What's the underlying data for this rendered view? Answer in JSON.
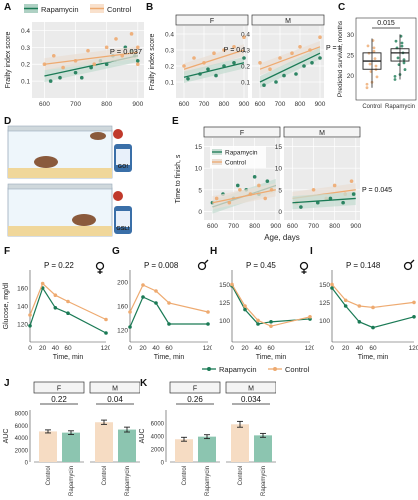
{
  "colors": {
    "rapa": "#1a7a55",
    "ctrl": "#eeaa70",
    "band_ctrl": "#eadfd6",
    "band_rapa": "#c6dcd2",
    "box_rapa": "#1a7a55",
    "box_ctrl": "#eeaa70"
  },
  "panel_letters": [
    "A",
    "B",
    "C",
    "D",
    "E",
    "F",
    "G",
    "H",
    "I",
    "J",
    "K"
  ],
  "legend_top": {
    "rapa": "Rapamycin",
    "ctrl": "Control"
  },
  "legend_glucose": {
    "rapa": "Rapamycin",
    "ctrl": "Control"
  },
  "diagram": {
    "screen1": "GO!",
    "screen2": "GSL!"
  },
  "chart_data": [
    {
      "id": "A",
      "type": "scatter",
      "ylabel": "Frailty index score",
      "xlabel": "",
      "xlim": [
        560,
        920
      ],
      "ylim": [
        0.0,
        0.45
      ],
      "xticks": [
        600,
        700,
        800,
        900
      ],
      "yticks": [
        0.1,
        0.2,
        0.3,
        0.4
      ],
      "annotation": "P = 0.037",
      "series": [
        {
          "name": "Rapamycin",
          "x": [
            620,
            650,
            700,
            720,
            750,
            780,
            800,
            820,
            860,
            880,
            890,
            900
          ],
          "y": [
            0.1,
            0.12,
            0.15,
            0.12,
            0.18,
            0.22,
            0.2,
            0.25,
            0.3,
            0.28,
            0.25,
            0.22
          ],
          "fit": [
            [
              600,
              0.13
            ],
            [
              900,
              0.25
            ]
          ]
        },
        {
          "name": "Control",
          "x": [
            600,
            630,
            660,
            700,
            740,
            760,
            800,
            830,
            850,
            880,
            900,
            900
          ],
          "y": [
            0.2,
            0.25,
            0.18,
            0.22,
            0.28,
            0.2,
            0.3,
            0.35,
            0.25,
            0.38,
            0.3,
            0.2
          ],
          "fit": [
            [
              600,
              0.2
            ],
            [
              900,
              0.27
            ]
          ]
        }
      ]
    },
    {
      "id": "B",
      "type": "scatter",
      "facets": [
        "F",
        "M"
      ],
      "ylabel": "Frailty index score",
      "xlabel": "",
      "xlim": [
        560,
        920
      ],
      "ylim": [
        0.0,
        0.45
      ],
      "xticks": [
        600,
        700,
        800,
        900
      ],
      "yticks": [
        0.1,
        0.2,
        0.3,
        0.4
      ],
      "annotations": [
        "",
        "P = 0.1",
        "P = 0.1"
      ],
      "series": [
        {
          "name": "Control F",
          "x": [
            600,
            650,
            700,
            750,
            800,
            850,
            900
          ],
          "y": [
            0.2,
            0.25,
            0.22,
            0.28,
            0.3,
            0.32,
            0.38
          ],
          "fit": [
            [
              600,
              0.18
            ],
            [
              900,
              0.3
            ]
          ]
        },
        {
          "name": "Rapamycin F",
          "x": [
            620,
            680,
            720,
            760,
            800,
            850,
            900
          ],
          "y": [
            0.12,
            0.15,
            0.18,
            0.14,
            0.2,
            0.22,
            0.25
          ],
          "fit": [
            [
              600,
              0.13
            ],
            [
              900,
              0.22
            ]
          ]
        },
        {
          "name": "Control M",
          "x": [
            600,
            650,
            700,
            760,
            800,
            850,
            900
          ],
          "y": [
            0.22,
            0.18,
            0.25,
            0.28,
            0.32,
            0.3,
            0.38
          ],
          "fit": [
            [
              600,
              0.18
            ],
            [
              900,
              0.32
            ]
          ]
        },
        {
          "name": "Rapamycin M",
          "x": [
            620,
            680,
            720,
            780,
            820,
            860,
            900
          ],
          "y": [
            0.08,
            0.1,
            0.14,
            0.15,
            0.2,
            0.22,
            0.25
          ],
          "fit": [
            [
              600,
              0.1
            ],
            [
              900,
              0.28
            ]
          ]
        }
      ]
    },
    {
      "id": "C",
      "type": "box",
      "ylabel": "Predicted survival, months",
      "categories": [
        "Control",
        "Rapamycin"
      ],
      "ylim": [
        14,
        34
      ],
      "yticks": [
        20,
        25,
        30
      ],
      "annotation": "0.015",
      "boxes": [
        {
          "q1": 21.5,
          "median": 23.5,
          "q3": 25.5,
          "lo": 17,
          "hi": 29
        },
        {
          "q1": 23.5,
          "median": 25.5,
          "q3": 26.5,
          "lo": 19,
          "hi": 30
        }
      ]
    },
    {
      "id": "E",
      "type": "scatter",
      "facets": [
        "F",
        "M"
      ],
      "ylabel": "Time to finish, s",
      "xlabel": "Age, days",
      "xlim": [
        560,
        920
      ],
      "ylim": [
        -2,
        17
      ],
      "xticks": [
        600,
        700,
        800,
        900
      ],
      "yticks": [
        0,
        5,
        10,
        15
      ],
      "annotation": "P = 0.045",
      "legend": [
        "Rapamycin",
        "Control"
      ],
      "series": [
        {
          "name": "Rapamycin F",
          "x": [
            600,
            650,
            700,
            720,
            760,
            800,
            820,
            860
          ],
          "y": [
            2,
            4,
            3,
            6,
            5,
            8,
            4,
            7
          ],
          "fit": [
            [
              600,
              1
            ],
            [
              900,
              6
            ]
          ]
        },
        {
          "name": "Control F",
          "x": [
            620,
            680,
            730,
            780,
            820,
            850,
            880
          ],
          "y": [
            3,
            2,
            5,
            4,
            6,
            3,
            5
          ],
          "fit": [
            [
              600,
              2
            ],
            [
              900,
              5
            ]
          ]
        },
        {
          "name": "Control M",
          "x": [
            620,
            700,
            760,
            800,
            850,
            880
          ],
          "y": [
            2,
            5,
            3,
            6,
            4,
            7
          ],
          "fit": [
            [
              600,
              3
            ],
            [
              900,
              5
            ]
          ]
        },
        {
          "name": "Rapamycin M",
          "x": [
            640,
            720,
            780,
            840,
            890
          ],
          "y": [
            1,
            2,
            3,
            2,
            4
          ],
          "fit": [
            [
              600,
              2
            ],
            [
              900,
              3
            ]
          ]
        }
      ]
    },
    {
      "id": "F",
      "type": "line",
      "sex": "F",
      "ylabel": "Glucose, mg/dl",
      "xlabel": "Time, min",
      "x": [
        0,
        20,
        40,
        60,
        120
      ],
      "xticks": [
        0,
        20,
        40,
        60,
        120
      ],
      "ylim": [
        100,
        180
      ],
      "yticks": [
        120,
        140,
        160
      ],
      "annotation": "P = 0.22",
      "series": [
        {
          "name": "Rapamycin",
          "values": [
            118,
            160,
            138,
            132,
            110
          ]
        },
        {
          "name": "Control",
          "values": [
            130,
            165,
            152,
            145,
            125
          ]
        }
      ]
    },
    {
      "id": "G",
      "type": "line",
      "sex": "M",
      "ylabel": "",
      "xlabel": "Time, min",
      "x": [
        0,
        20,
        40,
        60,
        120
      ],
      "xticks": [
        0,
        20,
        40,
        60,
        120
      ],
      "ylim": [
        100,
        220
      ],
      "yticks": [
        120,
        160,
        200
      ],
      "annotation": "P = 0.008",
      "series": [
        {
          "name": "Rapamycin",
          "values": [
            125,
            175,
            165,
            130,
            130
          ]
        },
        {
          "name": "Control",
          "values": [
            150,
            195,
            185,
            165,
            150
          ]
        }
      ]
    },
    {
      "id": "H",
      "type": "line",
      "sex": "F",
      "ylabel": "",
      "xlabel": "Time, min",
      "x": [
        0,
        20,
        40,
        60,
        120
      ],
      "xticks": [
        0,
        20,
        40,
        60,
        120
      ],
      "ylim": [
        70,
        170
      ],
      "yticks": [
        100,
        125,
        150
      ],
      "annotation": "P = 0.45",
      "series": [
        {
          "name": "Rapamycin",
          "values": [
            148,
            115,
            95,
            98,
            102
          ]
        },
        {
          "name": "Control",
          "values": [
            150,
            120,
            100,
            92,
            105
          ]
        }
      ]
    },
    {
      "id": "I",
      "type": "line",
      "sex": "M",
      "ylabel": "",
      "xlabel": "Time, min",
      "x": [
        0,
        20,
        40,
        60,
        120
      ],
      "xticks": [
        0,
        20,
        40,
        60,
        120
      ],
      "ylim": [
        70,
        170
      ],
      "yticks": [
        100,
        125,
        150
      ],
      "annotation": "P = 0.148",
      "series": [
        {
          "name": "Rapamycin",
          "values": [
            145,
            120,
            98,
            90,
            105
          ]
        },
        {
          "name": "Control",
          "values": [
            150,
            128,
            120,
            118,
            125
          ]
        }
      ]
    },
    {
      "id": "J",
      "type": "bar",
      "facets": [
        "F",
        "M"
      ],
      "ylabel": "AUC",
      "categories": [
        "Control",
        "Rapamycin"
      ],
      "ylim": [
        0,
        8500
      ],
      "yticks": [
        0,
        2000,
        4000,
        6000,
        8000
      ],
      "facet_values": [
        [
          5000,
          4800
        ],
        [
          6500,
          5300
        ]
      ],
      "facet_errors": [
        [
          250,
          300
        ],
        [
          350,
          400
        ]
      ],
      "pvalues": [
        "0.22",
        "0.04"
      ]
    },
    {
      "id": "K",
      "type": "bar",
      "facets": [
        "F",
        "M"
      ],
      "ylabel": "AUC",
      "categories": [
        "Control",
        "Rapamycin"
      ],
      "ylim": [
        0,
        8000
      ],
      "yticks": [
        0,
        2000,
        4000,
        6000
      ],
      "facet_values": [
        [
          3500,
          3900
        ],
        [
          5800,
          4100
        ]
      ],
      "facet_errors": [
        [
          300,
          300
        ],
        [
          450,
          300
        ]
      ],
      "pvalues": [
        "0.26",
        "0.034"
      ]
    }
  ]
}
